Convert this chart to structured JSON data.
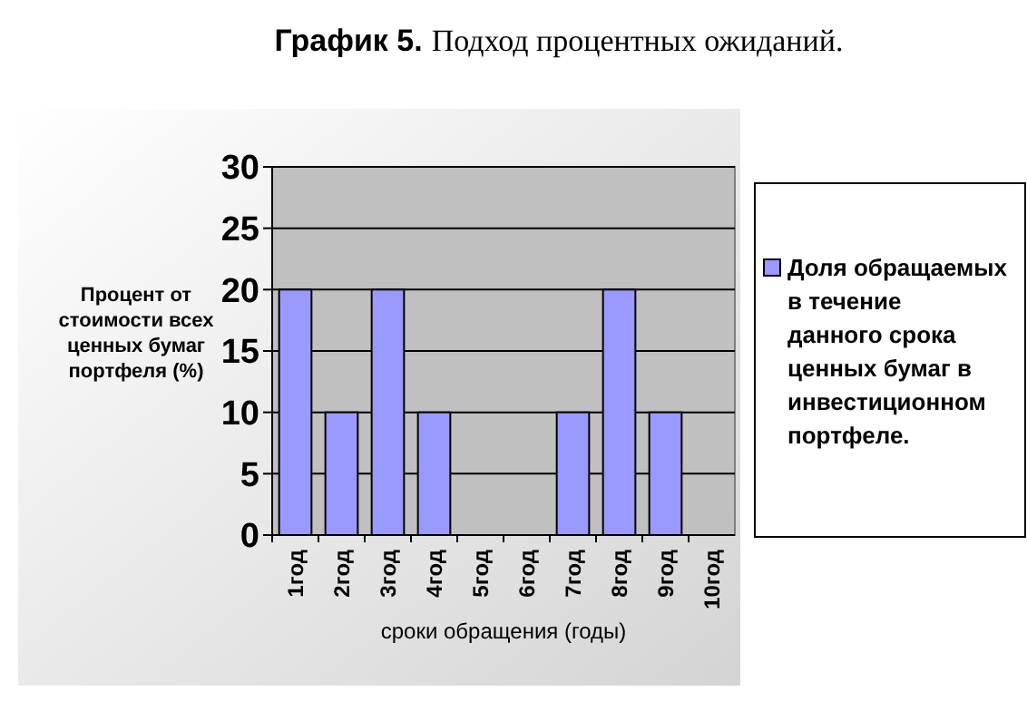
{
  "chart_data": {
    "type": "bar",
    "title": "График 5.",
    "subtitle": "Подход процентных ожиданий.",
    "ylabel": "Процент от стоимости всех ценных бумаг портфеля (%)",
    "xlabel": "сроки обращения (годы)",
    "categories": [
      "1год",
      "2год",
      "3год",
      "4год",
      "5год",
      "6год",
      "7год",
      "8год",
      "9год",
      "10год"
    ],
    "series": [
      {
        "name": "Доля обращаемых в течение данного срока ценных бумаг в инвестиционном портфеле.",
        "color": "#9999ff",
        "values": [
          20,
          10,
          20,
          10,
          0,
          0,
          10,
          20,
          10,
          0
        ]
      }
    ],
    "ylim": [
      0,
      30
    ],
    "yticks": [
      0,
      5,
      10,
      15,
      20,
      25,
      30
    ],
    "grid": "y",
    "legend": "right"
  }
}
